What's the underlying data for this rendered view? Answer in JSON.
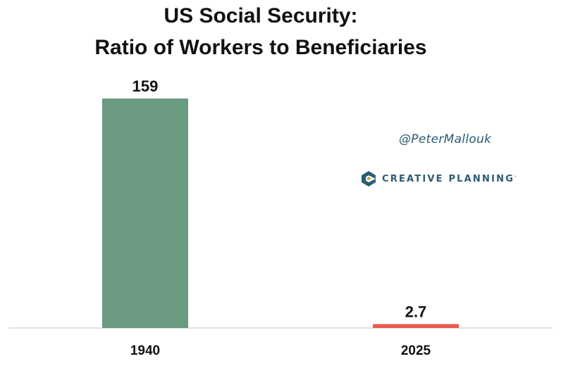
{
  "title_line1": "US Social Security:",
  "title_line2": "Ratio of Workers to Beneficiaries",
  "watermark": "@PeterMallouk",
  "brand": {
    "name": "CREATIVE PLANNING",
    "mark": "·",
    "logo_icon": "creative-planning-logo-icon"
  },
  "colors": {
    "bar_1940": "#6a9a7f",
    "bar_2025": "#ea5a4b",
    "axis": "#d9d9d9",
    "brand": "#2a5b73",
    "brand_accent": "#c7a24a"
  },
  "chart_data": {
    "type": "bar",
    "title": "US Social Security: Ratio of Workers to Beneficiaries",
    "categories": [
      "1940",
      "2025"
    ],
    "values": [
      159,
      2.7
    ],
    "value_labels": [
      "159",
      "2.7"
    ],
    "xlabel": "",
    "ylabel": "",
    "ylim": [
      0,
      159
    ],
    "grid": false,
    "legend": "none"
  }
}
